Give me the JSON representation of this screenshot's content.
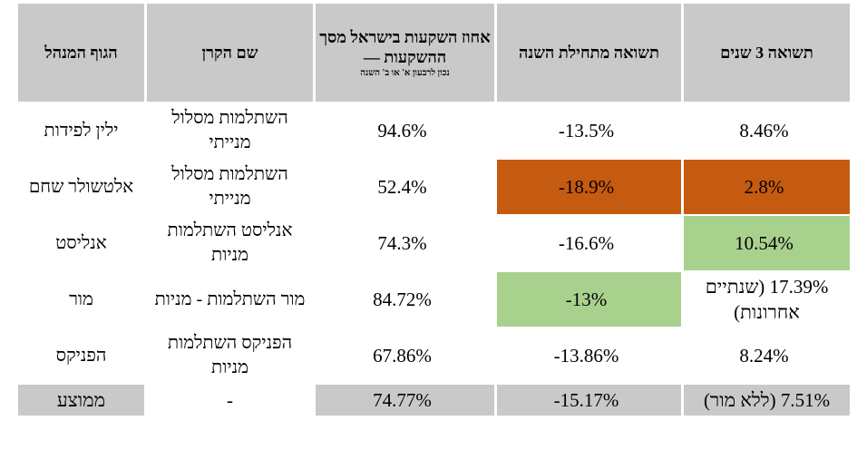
{
  "headers": {
    "return_3y": "תשואה 3 שנים",
    "return_ytd": "תשואה מתחילת השנה",
    "israel_share_main": "אחוז השקעות בישראל מסך ההשקעות —",
    "israel_share_note": "נכון לרבעון א' או ב' השנה",
    "fund_name": "שם הקרן",
    "manager": "הגוף המנהל"
  },
  "rows": [
    {
      "return_3y": "8.46%",
      "return_ytd": "-13.5%",
      "israel_share": "94.6%",
      "fund_name": "השתלמות מסלול מנייתי",
      "manager": "ילין לפידות"
    },
    {
      "return_3y": "2.8%",
      "return_ytd": "-18.9%",
      "israel_share": "52.4%",
      "fund_name": "השתלמות מסלול מנייתי",
      "manager": "אלטשולר שחם"
    },
    {
      "return_3y": "10.54%",
      "return_ytd": "-16.6%",
      "israel_share": "74.3%",
      "fund_name": "אנליסט השתלמות מניות",
      "manager": "אנליסט"
    },
    {
      "return_3y": "17.39% (שנתיים אחרונות)",
      "return_ytd": "-13%",
      "israel_share": "84.72%",
      "fund_name": "מור השתלמות - מניות",
      "manager": "מור"
    },
    {
      "return_3y": "8.24%",
      "return_ytd": "-13.86%",
      "israel_share": "67.86%",
      "fund_name": "הפניקס השתלמות מניות",
      "manager": "הפניקס"
    }
  ],
  "average": {
    "return_3y": "7.51% (ללא מור)",
    "return_ytd": "-15.17%",
    "israel_share": "74.77%",
    "fund_name": "-",
    "manager": "ממוצע"
  },
  "colors": {
    "header_bg": "#c9c9c9",
    "worst": "#c55a11",
    "best": "#a9d18e"
  }
}
